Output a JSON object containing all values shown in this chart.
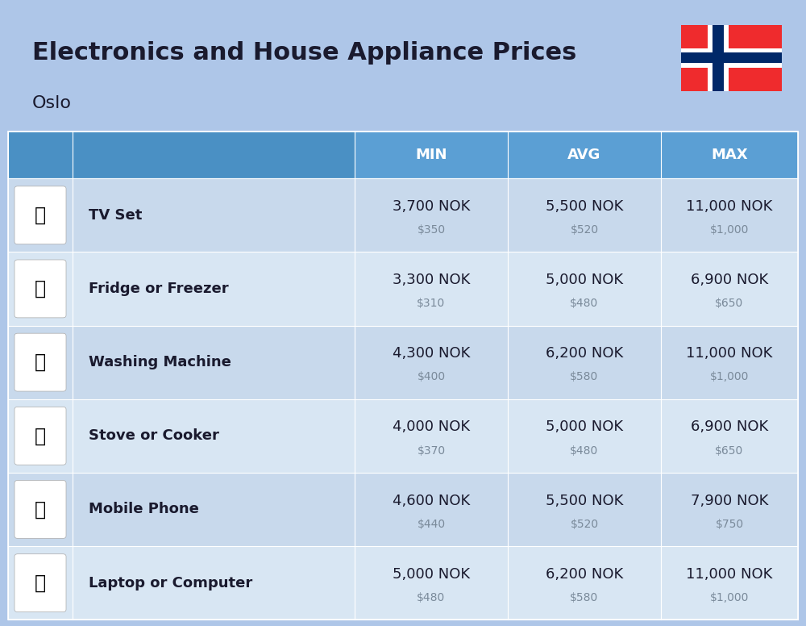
{
  "title": "Electronics and House Appliance Prices",
  "subtitle": "Oslo",
  "bg_color": "#aec6e8",
  "header_color": "#4a90c4",
  "col_header_color": "#5b9fd4",
  "header_text_color": "#ffffff",
  "row_colors": [
    "#c8d9ec",
    "#d8e6f3"
  ],
  "items": [
    {
      "name": "TV Set",
      "min_nok": "3,700 NOK",
      "min_usd": "$350",
      "avg_nok": "5,500 NOK",
      "avg_usd": "$520",
      "max_nok": "11,000 NOK",
      "max_usd": "$1,000"
    },
    {
      "name": "Fridge or Freezer",
      "min_nok": "3,300 NOK",
      "min_usd": "$310",
      "avg_nok": "5,000 NOK",
      "avg_usd": "$480",
      "max_nok": "6,900 NOK",
      "max_usd": "$650"
    },
    {
      "name": "Washing Machine",
      "min_nok": "4,300 NOK",
      "min_usd": "$400",
      "avg_nok": "6,200 NOK",
      "avg_usd": "$580",
      "max_nok": "11,000 NOK",
      "max_usd": "$1,000"
    },
    {
      "name": "Stove or Cooker",
      "min_nok": "4,000 NOK",
      "min_usd": "$370",
      "avg_nok": "5,000 NOK",
      "avg_usd": "$480",
      "max_nok": "6,900 NOK",
      "max_usd": "$650"
    },
    {
      "name": "Mobile Phone",
      "min_nok": "4,600 NOK",
      "min_usd": "$440",
      "avg_nok": "5,500 NOK",
      "avg_usd": "$520",
      "max_nok": "7,900 NOK",
      "max_usd": "$750"
    },
    {
      "name": "Laptop or Computer",
      "min_nok": "5,000 NOK",
      "min_usd": "$480",
      "avg_nok": "6,200 NOK",
      "avg_usd": "$580",
      "max_nok": "11,000 NOK",
      "max_usd": "$1,000"
    }
  ],
  "col_headers": [
    "MIN",
    "AVG",
    "MAX"
  ],
  "norway_flag_colors": {
    "red": "#EF2B2D",
    "blue": "#002868",
    "white": "#ffffff"
  },
  "icon_chars": [
    "📺",
    "🧈",
    "🔁",
    "🔥",
    "📱",
    "💻"
  ]
}
